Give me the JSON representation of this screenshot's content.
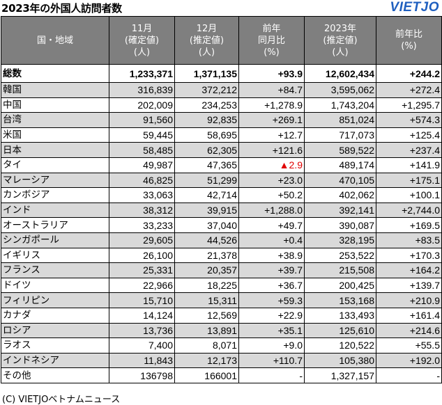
{
  "title": "2023年の外国人訪問者数",
  "logo": "VIETJO",
  "headers": [
    [
      "国・地域"
    ],
    [
      "11月",
      "(確定値)",
      "(人)"
    ],
    [
      "12月",
      "(推定値)",
      "(人)"
    ],
    [
      "前年",
      "同月比",
      "(%)"
    ],
    [
      "2023年",
      "(推定値)",
      "(人)"
    ],
    [
      "前年比",
      "(%)"
    ]
  ],
  "rows": [
    {
      "name": "総数",
      "nov": "1,233,371",
      "dec": "1,371,135",
      "yoy_month": "+93.9",
      "y2023": "12,602,434",
      "yoy": "+244.2",
      "style": "total"
    },
    {
      "name": "韓国",
      "nov": "316,839",
      "dec": "372,212",
      "yoy_month": "+84.7",
      "y2023": "3,595,062",
      "yoy": "+272.4",
      "style": "gray"
    },
    {
      "name": "中国",
      "nov": "202,009",
      "dec": "234,253",
      "yoy_month": "+1,278.9",
      "y2023": "1,743,204",
      "yoy": "+1,295.7",
      "style": "white"
    },
    {
      "name": "台湾",
      "nov": "91,560",
      "dec": "92,835",
      "yoy_month": "+269.1",
      "y2023": "851,024",
      "yoy": "+574.3",
      "style": "gray"
    },
    {
      "name": "米国",
      "nov": "59,445",
      "dec": "58,695",
      "yoy_month": "+12.7",
      "y2023": "717,073",
      "yoy": "+125.4",
      "style": "white"
    },
    {
      "name": "日本",
      "nov": "58,485",
      "dec": "62,305",
      "yoy_month": "+121.6",
      "y2023": "589,522",
      "yoy": "+237.4",
      "style": "gray"
    },
    {
      "name": "タイ",
      "nov": "49,987",
      "dec": "47,365",
      "yoy_month": "▲2.9",
      "y2023": "489,174",
      "yoy": "+141.9",
      "style": "white",
      "negative": true
    },
    {
      "name": "マレーシア",
      "nov": "46,825",
      "dec": "51,299",
      "yoy_month": "+23.0",
      "y2023": "470,105",
      "yoy": "+175.1",
      "style": "gray"
    },
    {
      "name": "カンボジア",
      "nov": "33,063",
      "dec": "42,714",
      "yoy_month": "+50.2",
      "y2023": "402,062",
      "yoy": "+100.1",
      "style": "white"
    },
    {
      "name": "インド",
      "nov": "38,312",
      "dec": "39,915",
      "yoy_month": "+1,288.0",
      "y2023": "392,141",
      "yoy": "+2,744.0",
      "style": "gray"
    },
    {
      "name": "オーストラリア",
      "nov": "33,233",
      "dec": "37,040",
      "yoy_month": "+49.7",
      "y2023": "390,087",
      "yoy": "+169.5",
      "style": "white"
    },
    {
      "name": "シンガポール",
      "nov": "29,605",
      "dec": "44,526",
      "yoy_month": "+0.4",
      "y2023": "328,195",
      "yoy": "+83.5",
      "style": "gray"
    },
    {
      "name": "イギリス",
      "nov": "26,100",
      "dec": "21,378",
      "yoy_month": "+38.9",
      "y2023": "253,522",
      "yoy": "+170.3",
      "style": "white"
    },
    {
      "name": "フランス",
      "nov": "25,331",
      "dec": "20,357",
      "yoy_month": "+39.7",
      "y2023": "215,508",
      "yoy": "+164.2",
      "style": "gray"
    },
    {
      "name": "ドイツ",
      "nov": "22,966",
      "dec": "18,225",
      "yoy_month": "+36.7",
      "y2023": "200,425",
      "yoy": "+139.7",
      "style": "white"
    },
    {
      "name": "フィリピン",
      "nov": "15,710",
      "dec": "15,311",
      "yoy_month": "+59.3",
      "y2023": "153,168",
      "yoy": "+210.9",
      "style": "gray"
    },
    {
      "name": "カナダ",
      "nov": "14,124",
      "dec": "12,569",
      "yoy_month": "+22.9",
      "y2023": "133,493",
      "yoy": "+161.4",
      "style": "white"
    },
    {
      "name": "ロシア",
      "nov": "13,736",
      "dec": "13,891",
      "yoy_month": "+35.1",
      "y2023": "125,610",
      "yoy": "+214.6",
      "style": "gray"
    },
    {
      "name": "ラオス",
      "nov": "7,400",
      "dec": "8,071",
      "yoy_month": "+9.0",
      "y2023": "120,522",
      "yoy": "+55.5",
      "style": "white"
    },
    {
      "name": "インドネシア",
      "nov": "11,843",
      "dec": "12,173",
      "yoy_month": "+110.7",
      "y2023": "105,380",
      "yoy": "+192.0",
      "style": "gray"
    },
    {
      "name": "その他",
      "nov": "136798",
      "dec": "166001",
      "yoy_month": "-",
      "y2023": "1,327,157",
      "yoy": "-",
      "style": "white"
    }
  ],
  "footer": "(C) VIETJOベトナムニュース"
}
